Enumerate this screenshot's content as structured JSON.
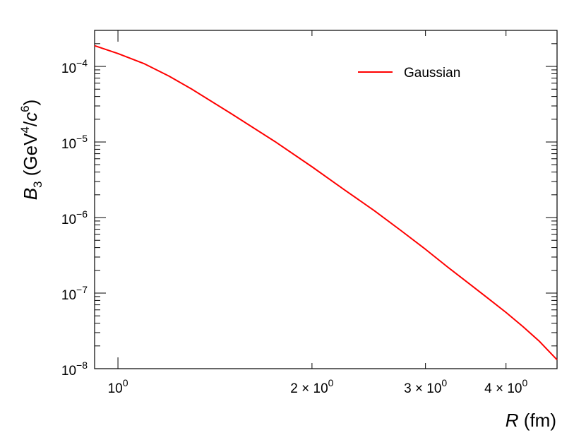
{
  "chart_data": {
    "type": "line",
    "title": "",
    "xlabel": {
      "var": "R",
      "unit": " (fm)"
    },
    "ylabel": {
      "var": "B",
      "sub": "3",
      "unit_pre": " (GeV",
      "sup1": "4",
      "mid": "/",
      "var2": "c",
      "sup2": "6",
      "close": ")"
    },
    "xscale": "log",
    "yscale": "log",
    "xlim": [
      0.92,
      4.8
    ],
    "ylim": [
      1e-08,
      0.0003
    ],
    "grid": false,
    "legend_position": "top-right",
    "x_ticks": [
      {
        "value": 1,
        "base": "10",
        "exp": "0"
      },
      {
        "value": 2,
        "base": "2 × 10",
        "exp": "0"
      },
      {
        "value": 3,
        "base": "3 × 10",
        "exp": "0"
      },
      {
        "value": 4,
        "base": "4 × 10",
        "exp": "0"
      }
    ],
    "y_ticks": [
      {
        "value": 0.0001,
        "base": "10",
        "exp": "−4"
      },
      {
        "value": 1e-05,
        "base": "10",
        "exp": "−5"
      },
      {
        "value": 1e-06,
        "base": "10",
        "exp": "−6"
      },
      {
        "value": 1e-07,
        "base": "10",
        "exp": "−7"
      },
      {
        "value": 1e-08,
        "base": "10",
        "exp": "−8"
      }
    ],
    "series": [
      {
        "name": "Gaussian",
        "color": "#ff0000",
        "x": [
          0.92,
          1.0,
          1.1,
          1.2,
          1.3,
          1.5,
          1.75,
          2.0,
          2.25,
          2.5,
          2.75,
          3.0,
          3.25,
          3.5,
          3.75,
          4.0,
          4.25,
          4.5,
          4.8
        ],
        "y": [
          0.000188,
          0.000148,
          0.000108,
          7.45e-05,
          5.04e-05,
          2.36e-05,
          1.02e-05,
          4.7e-06,
          2.3e-06,
          1.23e-06,
          6.7e-07,
          3.8e-07,
          2.2e-07,
          1.35e-07,
          8.55e-08,
          5.55e-08,
          3.6e-08,
          2.33e-08,
          1.31e-08
        ]
      }
    ]
  }
}
